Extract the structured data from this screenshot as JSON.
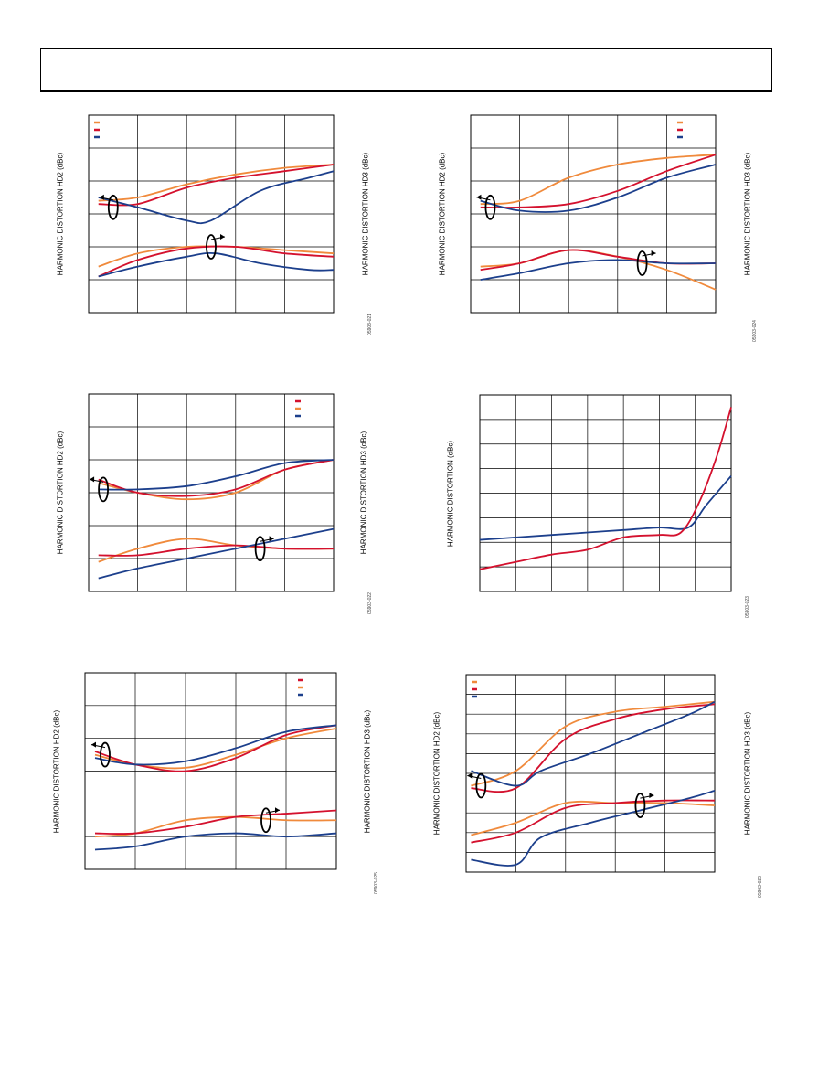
{
  "page": {
    "header_title": ""
  },
  "colors": {
    "red": "#d4112e",
    "orange": "#f08a3c",
    "blue": "#1c3f8c",
    "grid": "#000000"
  },
  "chart_data": [
    {
      "id": "p1",
      "type": "line",
      "ylabel_left": "HARMONIC DISTORTION HD2 (dBc)",
      "ylabel_right": "HARMONIC DISTORTION HD3 (dBc)",
      "fig_code": "05903-021",
      "xlim": [
        0,
        5
      ],
      "ylim": [
        0,
        6
      ],
      "grid": {
        "x": 5,
        "y": 6
      },
      "legend": "top-left",
      "series": [
        {
          "color": "orange",
          "points": [
            [
              0.2,
              3.4
            ],
            [
              1,
              3.5
            ],
            [
              2,
              3.9
            ],
            [
              3,
              4.2
            ],
            [
              4,
              4.4
            ],
            [
              5,
              4.5
            ]
          ]
        },
        {
          "color": "red",
          "points": [
            [
              0.2,
              3.3
            ],
            [
              1,
              3.3
            ],
            [
              2,
              3.8
            ],
            [
              3,
              4.1
            ],
            [
              4,
              4.3
            ],
            [
              5,
              4.5
            ]
          ]
        },
        {
          "color": "blue",
          "points": [
            [
              0.2,
              3.5
            ],
            [
              1,
              3.2
            ],
            [
              2,
              2.8
            ],
            [
              2.5,
              2.8
            ],
            [
              3.5,
              3.7
            ],
            [
              4.5,
              4.1
            ],
            [
              5,
              4.3
            ]
          ]
        },
        {
          "color": "orange",
          "points": [
            [
              0.2,
              1.4
            ],
            [
              1,
              1.8
            ],
            [
              2,
              2.0
            ],
            [
              3,
              2.0
            ],
            [
              4,
              1.9
            ],
            [
              5,
              1.8
            ]
          ]
        },
        {
          "color": "red",
          "points": [
            [
              0.2,
              1.1
            ],
            [
              1,
              1.6
            ],
            [
              2,
              1.95
            ],
            [
              3,
              2.0
            ],
            [
              4,
              1.8
            ],
            [
              5,
              1.7
            ]
          ]
        },
        {
          "color": "blue",
          "points": [
            [
              0.2,
              1.1
            ],
            [
              1,
              1.4
            ],
            [
              2,
              1.7
            ],
            [
              2.6,
              1.8
            ],
            [
              3.5,
              1.5
            ],
            [
              4.5,
              1.3
            ],
            [
              5,
              1.3
            ]
          ]
        }
      ],
      "markers": [
        {
          "x": 0.5,
          "y": 3.2,
          "dir": "left"
        },
        {
          "x": 2.5,
          "y": 2.0,
          "dir": "right"
        }
      ]
    },
    {
      "id": "p2",
      "type": "line",
      "ylabel_left": "HARMONIC DISTORTION HD2 (dBc)",
      "ylabel_right": "HARMONIC DISTORTION HD3 (dBc)",
      "fig_code": "05903-024",
      "xlim": [
        0,
        5
      ],
      "ylim": [
        0,
        6
      ],
      "grid": {
        "x": 5,
        "y": 6
      },
      "legend": "top-right",
      "series": [
        {
          "color": "orange",
          "points": [
            [
              0.2,
              3.3
            ],
            [
              1,
              3.4
            ],
            [
              2,
              4.1
            ],
            [
              3,
              4.5
            ],
            [
              4,
              4.7
            ],
            [
              5,
              4.8
            ]
          ]
        },
        {
          "color": "red",
          "points": [
            [
              0.2,
              3.2
            ],
            [
              1,
              3.2
            ],
            [
              2,
              3.3
            ],
            [
              3,
              3.7
            ],
            [
              4,
              4.3
            ],
            [
              5,
              4.8
            ]
          ]
        },
        {
          "color": "blue",
          "points": [
            [
              0.2,
              3.4
            ],
            [
              1,
              3.1
            ],
            [
              2,
              3.1
            ],
            [
              3,
              3.5
            ],
            [
              4,
              4.1
            ],
            [
              5,
              4.5
            ]
          ]
        },
        {
          "color": "orange",
          "points": [
            [
              0.2,
              1.4
            ],
            [
              1,
              1.5
            ],
            [
              2,
              1.9
            ],
            [
              3,
              1.7
            ],
            [
              4,
              1.3
            ],
            [
              5,
              0.7
            ]
          ]
        },
        {
          "color": "red",
          "points": [
            [
              0.2,
              1.3
            ],
            [
              1,
              1.5
            ],
            [
              2,
              1.9
            ],
            [
              3,
              1.7
            ],
            [
              4,
              1.5
            ],
            [
              5,
              1.5
            ]
          ]
        },
        {
          "color": "blue",
          "points": [
            [
              0.2,
              1.0
            ],
            [
              1,
              1.2
            ],
            [
              2,
              1.5
            ],
            [
              3,
              1.6
            ],
            [
              4,
              1.5
            ],
            [
              5,
              1.5
            ]
          ]
        }
      ],
      "markers": [
        {
          "x": 0.4,
          "y": 3.2,
          "dir": "left"
        },
        {
          "x": 3.5,
          "y": 1.5,
          "dir": "right"
        }
      ]
    },
    {
      "id": "p3",
      "type": "line",
      "ylabel_left": "HARMONIC DISTORTION HD2 (dBc)",
      "ylabel_right": "HARMONIC DISTORTION HD3 (dBc)",
      "fig_code": "05903-022",
      "xlim": [
        0,
        5
      ],
      "ylim": [
        0,
        6
      ],
      "grid": {
        "x": 5,
        "y": 6
      },
      "legend": "top-right",
      "series": [
        {
          "color": "orange",
          "points": [
            [
              0.2,
              3.3
            ],
            [
              1,
              3.0
            ],
            [
              2,
              2.8
            ],
            [
              3,
              3.0
            ],
            [
              4,
              3.7
            ],
            [
              5,
              4.0
            ]
          ]
        },
        {
          "color": "red",
          "points": [
            [
              0.2,
              3.4
            ],
            [
              1,
              3.0
            ],
            [
              2,
              2.9
            ],
            [
              3,
              3.1
            ],
            [
              4,
              3.7
            ],
            [
              5,
              4.0
            ]
          ]
        },
        {
          "color": "blue",
          "points": [
            [
              0.2,
              3.1
            ],
            [
              1,
              3.1
            ],
            [
              2,
              3.2
            ],
            [
              3,
              3.5
            ],
            [
              4,
              3.9
            ],
            [
              5,
              4.0
            ]
          ]
        },
        {
          "color": "orange",
          "points": [
            [
              0.2,
              0.9
            ],
            [
              1,
              1.3
            ],
            [
              2,
              1.6
            ],
            [
              3,
              1.4
            ],
            [
              4,
              1.3
            ],
            [
              5,
              1.3
            ]
          ]
        },
        {
          "color": "red",
          "points": [
            [
              0.2,
              1.1
            ],
            [
              1,
              1.1
            ],
            [
              2,
              1.3
            ],
            [
              3,
              1.4
            ],
            [
              4,
              1.3
            ],
            [
              5,
              1.3
            ]
          ]
        },
        {
          "color": "blue",
          "points": [
            [
              0.2,
              0.4
            ],
            [
              1,
              0.7
            ],
            [
              2,
              1.0
            ],
            [
              3,
              1.3
            ],
            [
              4,
              1.6
            ],
            [
              5,
              1.9
            ]
          ]
        }
      ],
      "markers": [
        {
          "x": 0.3,
          "y": 3.1,
          "dir": "left"
        },
        {
          "x": 3.5,
          "y": 1.3,
          "dir": "right"
        }
      ]
    },
    {
      "id": "p4",
      "type": "line",
      "ylabel_left": "HARMONIC DISTORTION (dBc)",
      "ylabel_right": "",
      "fig_code": "05903-023",
      "xlim": [
        0,
        7
      ],
      "ylim": [
        0,
        8
      ],
      "grid": {
        "x": 7,
        "y": 8
      },
      "legend": "",
      "series": [
        {
          "color": "blue",
          "points": [
            [
              0,
              2.1
            ],
            [
              1,
              2.2
            ],
            [
              2,
              2.3
            ],
            [
              3,
              2.4
            ],
            [
              4,
              2.5
            ],
            [
              5,
              2.6
            ],
            [
              5.8,
              2.6
            ],
            [
              6.3,
              3.5
            ],
            [
              7,
              4.7
            ]
          ]
        },
        {
          "color": "red",
          "points": [
            [
              0,
              0.9
            ],
            [
              1,
              1.2
            ],
            [
              2,
              1.5
            ],
            [
              3,
              1.7
            ],
            [
              4,
              2.2
            ],
            [
              5,
              2.3
            ],
            [
              5.6,
              2.4
            ],
            [
              6.1,
              3.6
            ],
            [
              6.6,
              5.5
            ],
            [
              7,
              7.5
            ]
          ]
        }
      ],
      "markers": []
    },
    {
      "id": "p5",
      "type": "line",
      "ylabel_left": "HARMONIC DISTORTION HD2 (dBc)",
      "ylabel_right": "HARMONIC DISTORTION HD3 (dBc)",
      "fig_code": "05903-025",
      "xlim": [
        0,
        5
      ],
      "ylim": [
        0,
        6
      ],
      "grid": {
        "x": 5,
        "y": 6
      },
      "legend": "top-right",
      "series": [
        {
          "color": "orange",
          "points": [
            [
              0.2,
              3.5
            ],
            [
              1,
              3.2
            ],
            [
              2,
              3.1
            ],
            [
              3,
              3.5
            ],
            [
              4,
              4.0
            ],
            [
              5,
              4.3
            ]
          ]
        },
        {
          "color": "red",
          "points": [
            [
              0.2,
              3.6
            ],
            [
              1,
              3.2
            ],
            [
              2,
              3.0
            ],
            [
              3,
              3.4
            ],
            [
              4,
              4.1
            ],
            [
              5,
              4.4
            ]
          ]
        },
        {
          "color": "blue",
          "points": [
            [
              0.2,
              3.4
            ],
            [
              1,
              3.2
            ],
            [
              2,
              3.3
            ],
            [
              3,
              3.7
            ],
            [
              4,
              4.2
            ],
            [
              5,
              4.4
            ]
          ]
        },
        {
          "color": "orange",
          "points": [
            [
              0.2,
              1.0
            ],
            [
              1,
              1.1
            ],
            [
              2,
              1.5
            ],
            [
              3,
              1.6
            ],
            [
              4,
              1.5
            ],
            [
              5,
              1.5
            ]
          ]
        },
        {
          "color": "red",
          "points": [
            [
              0.2,
              1.1
            ],
            [
              1,
              1.1
            ],
            [
              2,
              1.3
            ],
            [
              3,
              1.6
            ],
            [
              4,
              1.7
            ],
            [
              5,
              1.8
            ]
          ]
        },
        {
          "color": "blue",
          "points": [
            [
              0.2,
              0.6
            ],
            [
              1,
              0.7
            ],
            [
              2,
              1.0
            ],
            [
              3,
              1.1
            ],
            [
              4,
              1.0
            ],
            [
              5,
              1.1
            ]
          ]
        }
      ],
      "markers": [
        {
          "x": 0.4,
          "y": 3.5,
          "dir": "left"
        },
        {
          "x": 3.6,
          "y": 1.5,
          "dir": "right"
        }
      ]
    },
    {
      "id": "p6",
      "type": "line",
      "ylabel_left": "HARMONIC DISTORTION HD2 (dBc)",
      "ylabel_right": "HARMONIC DISTORTION HD3 (dBc)",
      "fig_code": "05903-026",
      "xlim": [
        0,
        5
      ],
      "ylim": [
        0,
        8
      ],
      "grid": {
        "x": 5,
        "y": 10
      },
      "legend": "top-left",
      "series": [
        {
          "color": "orange",
          "points": [
            [
              0.1,
              3.5
            ],
            [
              1,
              4.1
            ],
            [
              2,
              5.9
            ],
            [
              3,
              6.5
            ],
            [
              4,
              6.7
            ],
            [
              5,
              6.9
            ]
          ]
        },
        {
          "color": "red",
          "points": [
            [
              0.1,
              3.4
            ],
            [
              1,
              3.4
            ],
            [
              2,
              5.4
            ],
            [
              3,
              6.2
            ],
            [
              4,
              6.6
            ],
            [
              5,
              6.8
            ]
          ]
        },
        {
          "color": "blue",
          "points": [
            [
              0.1,
              4.1
            ],
            [
              1,
              3.5
            ],
            [
              1.5,
              4.1
            ],
            [
              2.5,
              4.8
            ],
            [
              3.5,
              5.6
            ],
            [
              4.5,
              6.4
            ],
            [
              5,
              6.9
            ]
          ]
        },
        {
          "color": "orange",
          "points": [
            [
              0.1,
              1.5
            ],
            [
              1,
              2.0
            ],
            [
              2,
              2.8
            ],
            [
              3,
              2.8
            ],
            [
              4,
              2.8
            ],
            [
              5,
              2.7
            ]
          ]
        },
        {
          "color": "red",
          "points": [
            [
              0.1,
              1.2
            ],
            [
              1,
              1.6
            ],
            [
              2,
              2.6
            ],
            [
              3,
              2.8
            ],
            [
              4,
              2.9
            ],
            [
              5,
              2.9
            ]
          ]
        },
        {
          "color": "blue",
          "points": [
            [
              0.1,
              0.5
            ],
            [
              1,
              0.3
            ],
            [
              1.5,
              1.4
            ],
            [
              2.5,
              2.0
            ],
            [
              3.5,
              2.5
            ],
            [
              4.5,
              3.0
            ],
            [
              5,
              3.3
            ]
          ]
        }
      ],
      "markers": [
        {
          "x": 0.3,
          "y": 3.5,
          "dir": "left"
        },
        {
          "x": 3.5,
          "y": 2.7,
          "dir": "right"
        }
      ]
    }
  ]
}
